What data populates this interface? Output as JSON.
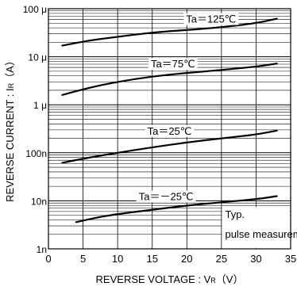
{
  "chart_data": {
    "type": "line",
    "xlabel": "REVERSE   VOLTAGE : V",
    "xlabel_sub": "R",
    "xlabel_unit": "（V）",
    "ylabel": "REVERSE   CURRENT : I",
    "ylabel_sub": "R",
    "ylabel_unit": "（A）",
    "xlim": [
      0,
      35
    ],
    "ylim": [
      1e-09,
      0.0001
    ],
    "y_scale": "log",
    "x_ticks": [
      {
        "value": 0,
        "label": "0"
      },
      {
        "value": 5,
        "label": "5"
      },
      {
        "value": 10,
        "label": "10"
      },
      {
        "value": 15,
        "label": "15"
      },
      {
        "value": 20,
        "label": "20"
      },
      {
        "value": 25,
        "label": "25"
      },
      {
        "value": 30,
        "label": "30"
      },
      {
        "value": 35,
        "label": "35"
      }
    ],
    "y_ticks": [
      {
        "value": 1e-09,
        "label": "1n"
      },
      {
        "value": 1e-08,
        "label": "10n"
      },
      {
        "value": 1e-07,
        "label": "100n"
      },
      {
        "value": 1e-06,
        "label": "1 μ"
      },
      {
        "value": 1e-05,
        "label": "10 μ"
      },
      {
        "value": 0.0001,
        "label": "100 μ"
      }
    ],
    "grid": true,
    "series": [
      {
        "name": "Ta＝125℃",
        "x": [
          2,
          6,
          10,
          15,
          20,
          25,
          30,
          33
        ],
        "y": [
          1.7e-05,
          2.2e-05,
          2.6e-05,
          3.2e-05,
          3.6e-05,
          4.1e-05,
          5e-05,
          6.2e-05
        ]
      },
      {
        "name": "Ta＝75℃",
        "x": [
          2,
          6,
          10,
          15,
          20,
          25,
          30,
          33
        ],
        "y": [
          1.6e-06,
          2.3e-06,
          3e-06,
          3.9e-06,
          4.6e-06,
          5.3e-06,
          6.2e-06,
          7.2e-06
        ]
      },
      {
        "name": "Ta＝25℃",
        "x": [
          2,
          6,
          10,
          15,
          20,
          25,
          30,
          33
        ],
        "y": [
          6.2e-08,
          8e-08,
          1e-07,
          1.3e-07,
          1.65e-07,
          2e-07,
          2.4e-07,
          2.9e-07
        ]
      },
      {
        "name": "Ta＝－25℃",
        "x": [
          4,
          7,
          10,
          15,
          20,
          25,
          30,
          33
        ],
        "y": [
          3.6e-09,
          4.5e-09,
          5.3e-09,
          6.5e-09,
          8e-09,
          9.3e-09,
          1.08e-08,
          1.25e-08
        ]
      }
    ],
    "annotation": [
      "Typ.",
      "pulse measurement"
    ]
  }
}
